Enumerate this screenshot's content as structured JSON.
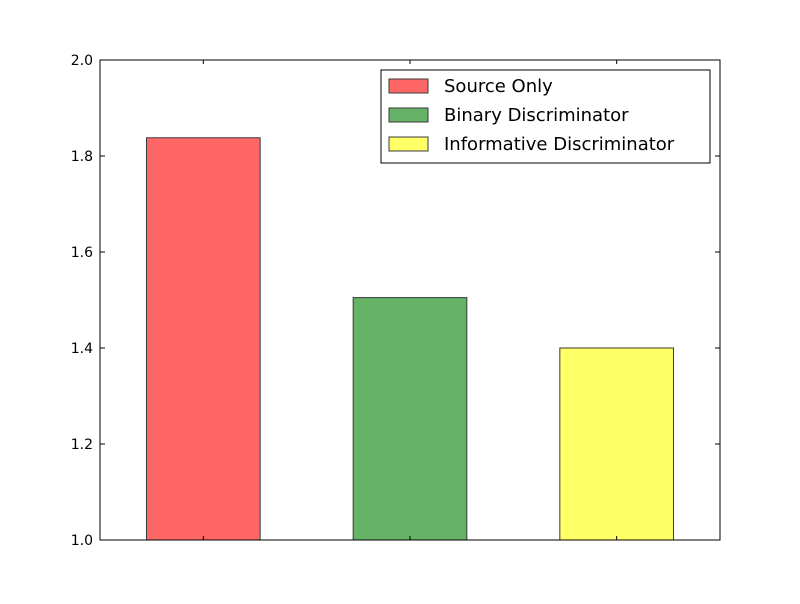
{
  "chart_data": {
    "type": "bar",
    "title": "",
    "xlabel": "",
    "ylabel": "",
    "ylim": [
      1.0,
      2.0
    ],
    "yticks": [
      "1.0",
      "1.2",
      "1.4",
      "1.6",
      "1.8",
      "2.0"
    ],
    "grid": false,
    "legend_position": "top-right",
    "series": [
      {
        "name": "Source Only",
        "value": 1.838,
        "color": "#ff6666"
      },
      {
        "name": "Binary Discriminator",
        "value": 1.505,
        "color": "#66b266"
      },
      {
        "name": "Informative Discriminator",
        "value": 1.4,
        "color": "#ffff66"
      }
    ]
  }
}
